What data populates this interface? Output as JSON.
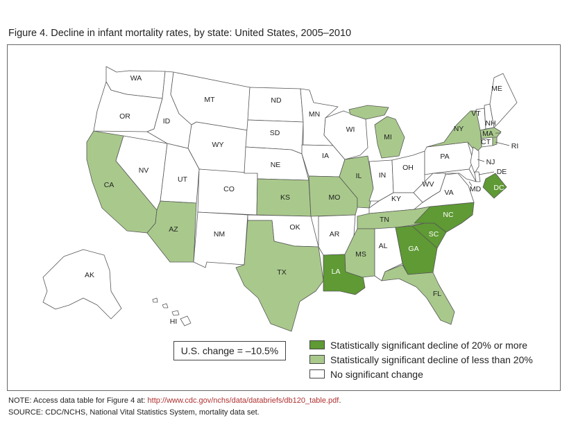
{
  "title": "Figure 4. Decline in infant mortality rates, by state: United States, 2005–2010",
  "us_change": "U.S. change = –10.5%",
  "legend": [
    {
      "label": "Statistically significant decline of 20% or more",
      "color": "#5f9a34"
    },
    {
      "label": "Statistically significant decline of less than 20%",
      "color": "#a9c98c"
    },
    {
      "label": "No significant change",
      "color": "#ffffff"
    }
  ],
  "note": {
    "prefix": "NOTE: Access data table for Figure 4 at: ",
    "url": "http://www.cdc.gov/nchs/data/databriefs/db120_table.pdf",
    "suffix": "."
  },
  "source": "SOURCE: CDC/NCHS, National Vital Statistics System, mortality data set.",
  "states": {
    "WA": "WA",
    "OR": "OR",
    "CA": "CA",
    "NV": "NV",
    "ID": "ID",
    "MT": "MT",
    "WY": "WY",
    "UT": "UT",
    "AZ": "AZ",
    "CO": "CO",
    "NM": "NM",
    "ND": "ND",
    "SD": "SD",
    "NE": "NE",
    "KS": "KS",
    "OK": "OK",
    "TX": "TX",
    "MN": "MN",
    "IA": "IA",
    "MO": "MO",
    "AR": "AR",
    "LA": "LA",
    "WI": "WI",
    "IL": "IL",
    "MI": "MI",
    "IN": "IN",
    "OH": "OH",
    "KY": "KY",
    "TN": "TN",
    "MS": "MS",
    "AL": "AL",
    "GA": "GA",
    "FL": "FL",
    "SC": "SC",
    "NC": "NC",
    "VA": "VA",
    "WV": "WV",
    "PA": "PA",
    "NY": "NY",
    "VT": "VT",
    "NH": "NH",
    "ME": "ME",
    "MA": "MA",
    "RI": "RI",
    "CT": "CT",
    "NJ": "NJ",
    "DE": "DE",
    "MD": "MD",
    "DC": "DC",
    "AK": "AK",
    "HI": "HI"
  }
}
